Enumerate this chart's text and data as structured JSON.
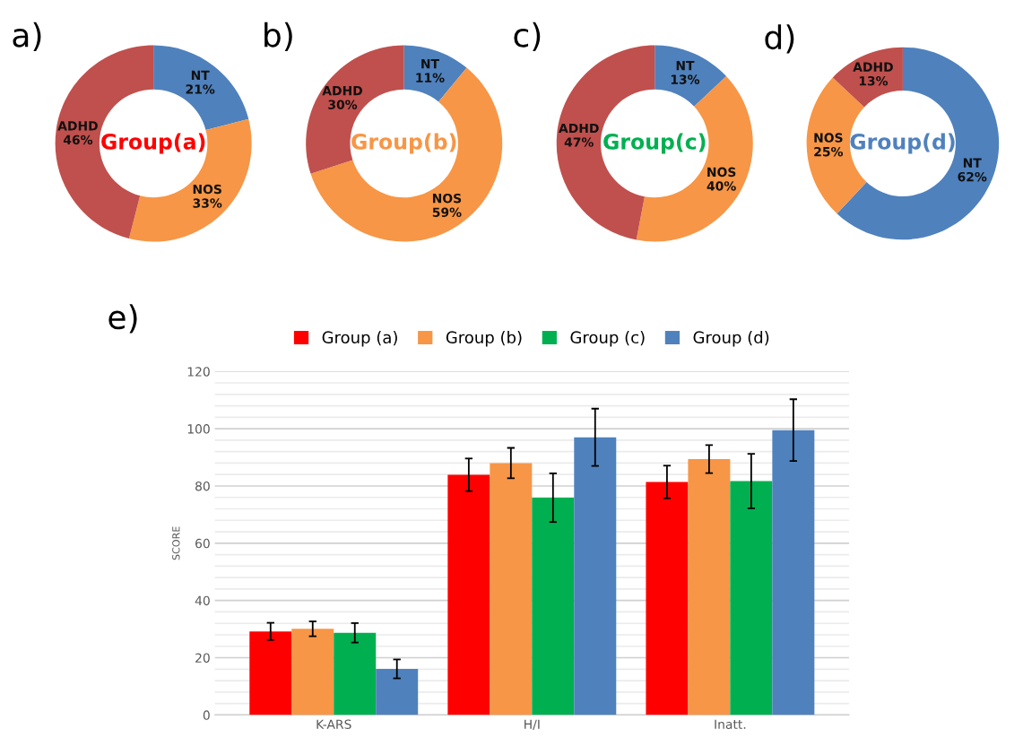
{
  "chart_data": [
    {
      "type": "donut",
      "title": "a)",
      "categories": [
        "NT",
        "NOS",
        "ADHD"
      ],
      "values": [
        21,
        33,
        46
      ],
      "value_labels": [
        "21%",
        "33%",
        "46%"
      ],
      "colors": [
        "#4f81bd",
        "#f79646",
        "#c0504d"
      ],
      "annotations": [
        "Group(a)"
      ]
    },
    {
      "type": "donut",
      "title": "b)",
      "categories": [
        "NT",
        "NOS",
        "ADHD"
      ],
      "values": [
        11,
        59,
        30
      ],
      "value_labels": [
        "11%",
        "59%",
        "30%"
      ],
      "colors": [
        "#4f81bd",
        "#f79646",
        "#c0504d"
      ],
      "annotations": [
        "Group(b)"
      ]
    },
    {
      "type": "donut",
      "title": "c)",
      "categories": [
        "NT",
        "NOS",
        "ADHD"
      ],
      "values": [
        13,
        40,
        47
      ],
      "value_labels": [
        "13%",
        "40%",
        "47%"
      ],
      "colors": [
        "#4f81bd",
        "#f79646",
        "#c0504d"
      ],
      "annotations": [
        "Group(c)"
      ]
    },
    {
      "type": "donut",
      "title": "d)",
      "categories": [
        "NT",
        "NOS",
        "ADHD"
      ],
      "values": [
        62,
        25,
        13
      ],
      "value_labels": [
        "62%",
        "25%",
        "13%"
      ],
      "colors": [
        "#4f81bd",
        "#f79646",
        "#c0504d"
      ],
      "annotations": [
        "Group(d)"
      ]
    },
    {
      "type": "bar",
      "title": "e)",
      "ylabel": "SCORE",
      "categories": [
        "K-ARS",
        "H/I",
        "Inatt."
      ],
      "series": [
        {
          "name": "Group (a)",
          "color": "#ff0000",
          "values": [
            29.2,
            83.9,
            81.4
          ],
          "errors": [
            3,
            5.7,
            5.7
          ]
        },
        {
          "name": "Group (b)",
          "color": "#f79646",
          "values": [
            30.1,
            88.0,
            89.4
          ],
          "errors": [
            2.6,
            5.3,
            4.9
          ]
        },
        {
          "name": "Group (c)",
          "color": "#00b050",
          "values": [
            28.7,
            75.9,
            81.7
          ],
          "errors": [
            3.4,
            8.5,
            9.5
          ]
        },
        {
          "name": "Group (d)",
          "color": "#4f81bd",
          "values": [
            16.1,
            97.0,
            99.5
          ],
          "errors": [
            3.3,
            10,
            10.8
          ]
        }
      ],
      "ylim": [
        0,
        120
      ],
      "yticks": [
        0,
        {
          "value": 4,
          "label": null
        },
        {
          "value": 8,
          "label": null
        },
        {
          "value": 12,
          "label": null
        },
        {
          "value": 16,
          "label": null
        },
        20,
        {
          "value": 24,
          "label": null
        },
        {
          "value": 28,
          "label": null
        },
        {
          "value": 32,
          "label": null
        },
        {
          "value": 36,
          "label": null
        },
        40,
        {
          "value": 44,
          "label": null
        },
        {
          "value": 48,
          "label": null
        },
        {
          "value": 52,
          "label": null
        },
        {
          "value": 56,
          "label": null
        },
        60,
        {
          "value": 64,
          "label": null
        },
        {
          "value": 68,
          "label": null
        },
        {
          "value": 72,
          "label": null
        },
        {
          "value": 76,
          "label": null
        },
        80,
        {
          "value": 84,
          "label": null
        },
        {
          "value": 88,
          "label": null
        },
        {
          "value": 92,
          "label": null
        },
        {
          "value": 96,
          "label": null
        },
        100,
        {
          "value": 104,
          "label": null
        },
        {
          "value": 108,
          "label": null
        },
        {
          "value": 112,
          "label": null
        },
        {
          "value": 116,
          "label": null
        },
        120
      ],
      "grid": "y",
      "legend": "top"
    }
  ]
}
